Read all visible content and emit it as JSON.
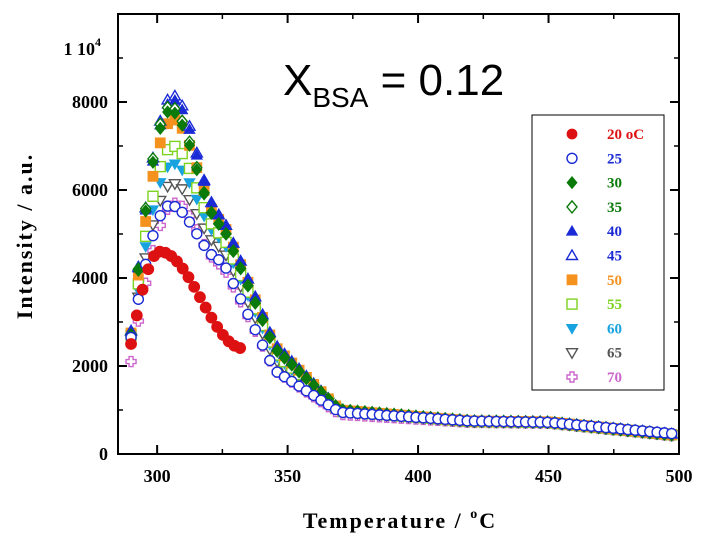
{
  "chart_data": {
    "type": "scatter",
    "annotation": {
      "main": "X",
      "sub": "BSA",
      "rest": " = 0.12"
    },
    "xlabel": {
      "main": "Temperature / ",
      "sup": "o",
      "rest": "C"
    },
    "ylabel": "Intensity / a.u.",
    "xlim": [
      285,
      500
    ],
    "ylim": [
      0,
      10000
    ],
    "xticks": [
      "300",
      "350",
      "400",
      "450",
      "500"
    ],
    "yticks": [
      "0",
      "2000",
      "4000",
      "6000",
      "8000"
    ],
    "ytick_top": {
      "base": "1 10",
      "exp": "4"
    },
    "legend_position": "right",
    "series": [
      {
        "name": "20 oC",
        "color": "#dd1111",
        "marker": "circle-filled",
        "x_range": [
          290,
          333
        ],
        "peak_x": 301,
        "peak_y": 4600,
        "start_y": 2500,
        "tail": [
          [
            333,
            2400
          ]
        ]
      },
      {
        "name": "25",
        "color": "#1a2bd6",
        "marker": "circle-open",
        "x_range": [
          290,
          500
        ],
        "peak_x": 305,
        "peak_y": 5650,
        "start_y": 2650,
        "tail": [
          [
            325,
            4400
          ],
          [
            345,
            1900
          ],
          [
            370,
            950
          ],
          [
            420,
            750
          ],
          [
            450,
            720
          ],
          [
            500,
            450
          ]
        ]
      },
      {
        "name": "30",
        "color": "#0a7a0a",
        "marker": "diamond-filled",
        "x_range": [
          290,
          500
        ],
        "peak_x": 305,
        "peak_y": 7800,
        "start_y": 2700,
        "tail": [
          [
            325,
            5200
          ],
          [
            345,
            2400
          ],
          [
            370,
            1000
          ],
          [
            420,
            750
          ],
          [
            450,
            720
          ],
          [
            500,
            420
          ]
        ]
      },
      {
        "name": "35",
        "color": "#0a7a0a",
        "marker": "diamond-open",
        "x_range": [
          290,
          500
        ],
        "peak_x": 305,
        "peak_y": 7900,
        "start_y": 2700,
        "tail": [
          [
            325,
            5200
          ],
          [
            345,
            2400
          ],
          [
            370,
            1000
          ],
          [
            420,
            750
          ],
          [
            450,
            720
          ],
          [
            500,
            420
          ]
        ]
      },
      {
        "name": "40",
        "color": "#1a2bd6",
        "marker": "triangle-filled",
        "x_range": [
          290,
          500
        ],
        "peak_x": 306,
        "peak_y": 8050,
        "start_y": 2800,
        "tail": [
          [
            325,
            5400
          ],
          [
            345,
            2500
          ],
          [
            370,
            1000
          ],
          [
            420,
            750
          ],
          [
            450,
            730
          ],
          [
            500,
            440
          ]
        ]
      },
      {
        "name": "45",
        "color": "#1a2bd6",
        "marker": "triangle-open",
        "x_range": [
          290,
          500
        ],
        "peak_x": 306,
        "peak_y": 8150,
        "start_y": 2800,
        "tail": [
          [
            325,
            5400
          ],
          [
            345,
            2500
          ],
          [
            370,
            1000
          ],
          [
            420,
            750
          ],
          [
            450,
            730
          ],
          [
            500,
            440
          ]
        ]
      },
      {
        "name": "50",
        "color": "#f5921e",
        "marker": "square-filled",
        "x_range": [
          290,
          500
        ],
        "peak_x": 306,
        "peak_y": 7600,
        "start_y": 2750,
        "tail": [
          [
            325,
            5300
          ],
          [
            345,
            2450
          ],
          [
            370,
            1000
          ],
          [
            420,
            750
          ],
          [
            450,
            730
          ],
          [
            500,
            420
          ]
        ]
      },
      {
        "name": "55",
        "color": "#7ed321",
        "marker": "square-open",
        "x_range": [
          290,
          500
        ],
        "peak_x": 306,
        "peak_y": 7000,
        "start_y": 2700,
        "tail": [
          [
            325,
            5000
          ],
          [
            345,
            2300
          ],
          [
            370,
            980
          ],
          [
            420,
            740
          ],
          [
            450,
            720
          ],
          [
            500,
            420
          ]
        ]
      },
      {
        "name": "60",
        "color": "#18a3e0",
        "marker": "triangle-down-filled",
        "x_range": [
          290,
          500
        ],
        "peak_x": 306,
        "peak_y": 6600,
        "start_y": 2650,
        "tail": [
          [
            325,
            4900
          ],
          [
            345,
            2250
          ],
          [
            370,
            970
          ],
          [
            420,
            740
          ],
          [
            450,
            720
          ],
          [
            500,
            420
          ]
        ]
      },
      {
        "name": "65",
        "color": "#555555",
        "marker": "triangle-down-open",
        "x_range": [
          290,
          500
        ],
        "peak_x": 306,
        "peak_y": 6150,
        "start_y": 2600,
        "tail": [
          [
            325,
            4700
          ],
          [
            345,
            2150
          ],
          [
            370,
            960
          ],
          [
            420,
            740
          ],
          [
            450,
            720
          ],
          [
            500,
            420
          ]
        ]
      },
      {
        "name": "70",
        "color": "#cc66cc",
        "marker": "cross-open",
        "x_range": [
          290,
          500
        ],
        "peak_x": 307,
        "peak_y": 5700,
        "start_y": 2100,
        "tail": [
          [
            325,
            4300
          ],
          [
            345,
            1900
          ],
          [
            370,
            900
          ],
          [
            420,
            720
          ],
          [
            450,
            700
          ],
          [
            500,
            400
          ]
        ]
      }
    ]
  }
}
